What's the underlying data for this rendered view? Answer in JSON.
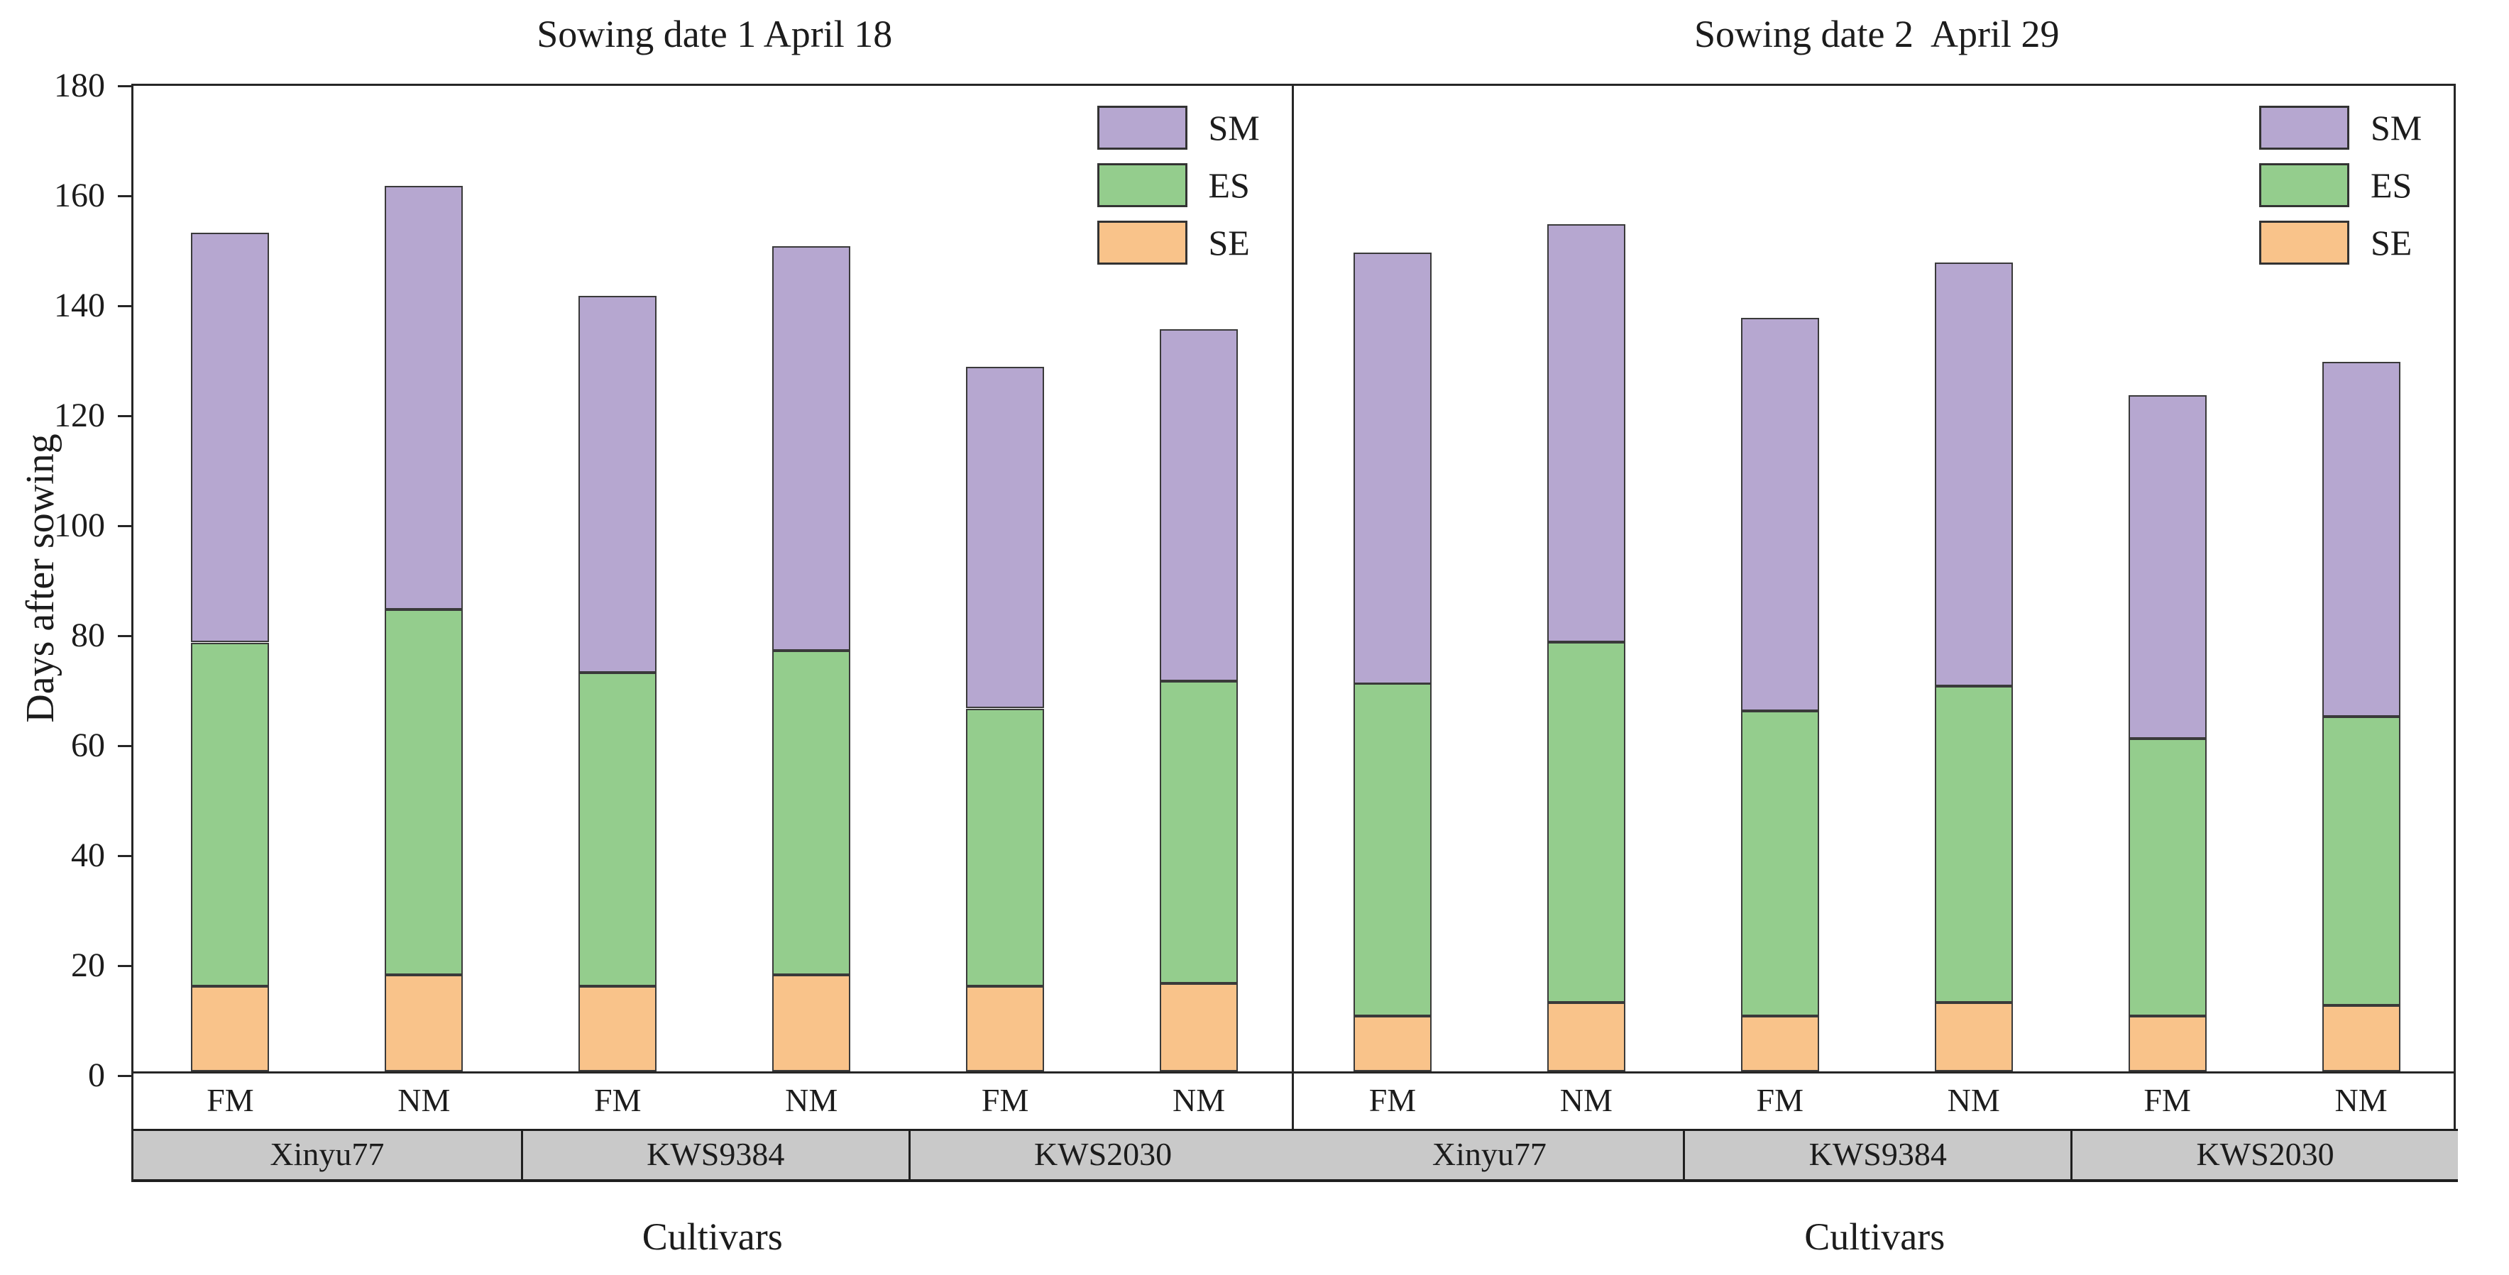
{
  "figure": {
    "background": "#ffffff",
    "text_color": "#1c1c1c"
  },
  "chart_data": {
    "type": "bar",
    "stacked": true,
    "orientation": "vertical",
    "grid": false,
    "ylabel": "Days after sowing",
    "ylim": [
      0,
      180
    ],
    "yticks": [
      0,
      20,
      40,
      60,
      80,
      100,
      120,
      140,
      160,
      180
    ],
    "series_order_bottom_to_top": [
      "SE",
      "ES",
      "SM"
    ],
    "legend_position": "top-right of each panel",
    "legend": [
      {
        "label": "SM",
        "color": "#b6a7d0"
      },
      {
        "label": "ES",
        "color": "#94cd8d"
      },
      {
        "label": "SE",
        "color": "#f9c38a"
      }
    ],
    "colors": {
      "SM": "#b6a7d0",
      "ES": "#94cd8d",
      "SE": "#f9c38a",
      "bar_border": "#3a3a3a",
      "axis": "#262626",
      "cultivar_band": "#c9c9c9"
    },
    "panels": [
      {
        "title": "Sowing date 1 April 18",
        "xlabel": "Cultivars",
        "cultivars": [
          "Xinyu77",
          "KWS9384",
          "KWS2030"
        ],
        "bars": [
          {
            "cultivar": "Xinyu77",
            "treatment": "FM",
            "SE": 15.5,
            "ES": 62.5,
            "SM": 74.5,
            "total": 152.5
          },
          {
            "cultivar": "Xinyu77",
            "treatment": "NM",
            "SE": 17.5,
            "ES": 66.5,
            "SM": 77.0,
            "total": 161
          },
          {
            "cultivar": "KWS9384",
            "treatment": "FM",
            "SE": 15.5,
            "ES": 57.0,
            "SM": 68.5,
            "total": 141
          },
          {
            "cultivar": "KWS9384",
            "treatment": "NM",
            "SE": 17.5,
            "ES": 59.0,
            "SM": 73.5,
            "total": 150
          },
          {
            "cultivar": "KWS2030",
            "treatment": "FM",
            "SE": 15.5,
            "ES": 50.5,
            "SM": 62.0,
            "total": 128
          },
          {
            "cultivar": "KWS2030",
            "treatment": "NM",
            "SE": 16.0,
            "ES": 55.0,
            "SM": 64.0,
            "total": 135
          }
        ]
      },
      {
        "title": "Sowing date 2  April 29",
        "xlabel": "Cultivars",
        "cultivars": [
          "Xinyu77",
          "KWS9384",
          "KWS2030"
        ],
        "bars": [
          {
            "cultivar": "Xinyu77",
            "treatment": "FM",
            "SE": 10.0,
            "ES": 60.5,
            "SM": 78.5,
            "total": 149
          },
          {
            "cultivar": "Xinyu77",
            "treatment": "NM",
            "SE": 12.5,
            "ES": 65.5,
            "SM": 76.0,
            "total": 154
          },
          {
            "cultivar": "KWS9384",
            "treatment": "FM",
            "SE": 10.0,
            "ES": 55.5,
            "SM": 71.5,
            "total": 137
          },
          {
            "cultivar": "KWS9384",
            "treatment": "NM",
            "SE": 12.5,
            "ES": 57.5,
            "SM": 77.0,
            "total": 147
          },
          {
            "cultivar": "KWS2030",
            "treatment": "FM",
            "SE": 10.0,
            "ES": 50.5,
            "SM": 62.5,
            "total": 123
          },
          {
            "cultivar": "KWS2030",
            "treatment": "NM",
            "SE": 12.0,
            "ES": 52.5,
            "SM": 64.5,
            "total": 129
          }
        ]
      }
    ]
  }
}
